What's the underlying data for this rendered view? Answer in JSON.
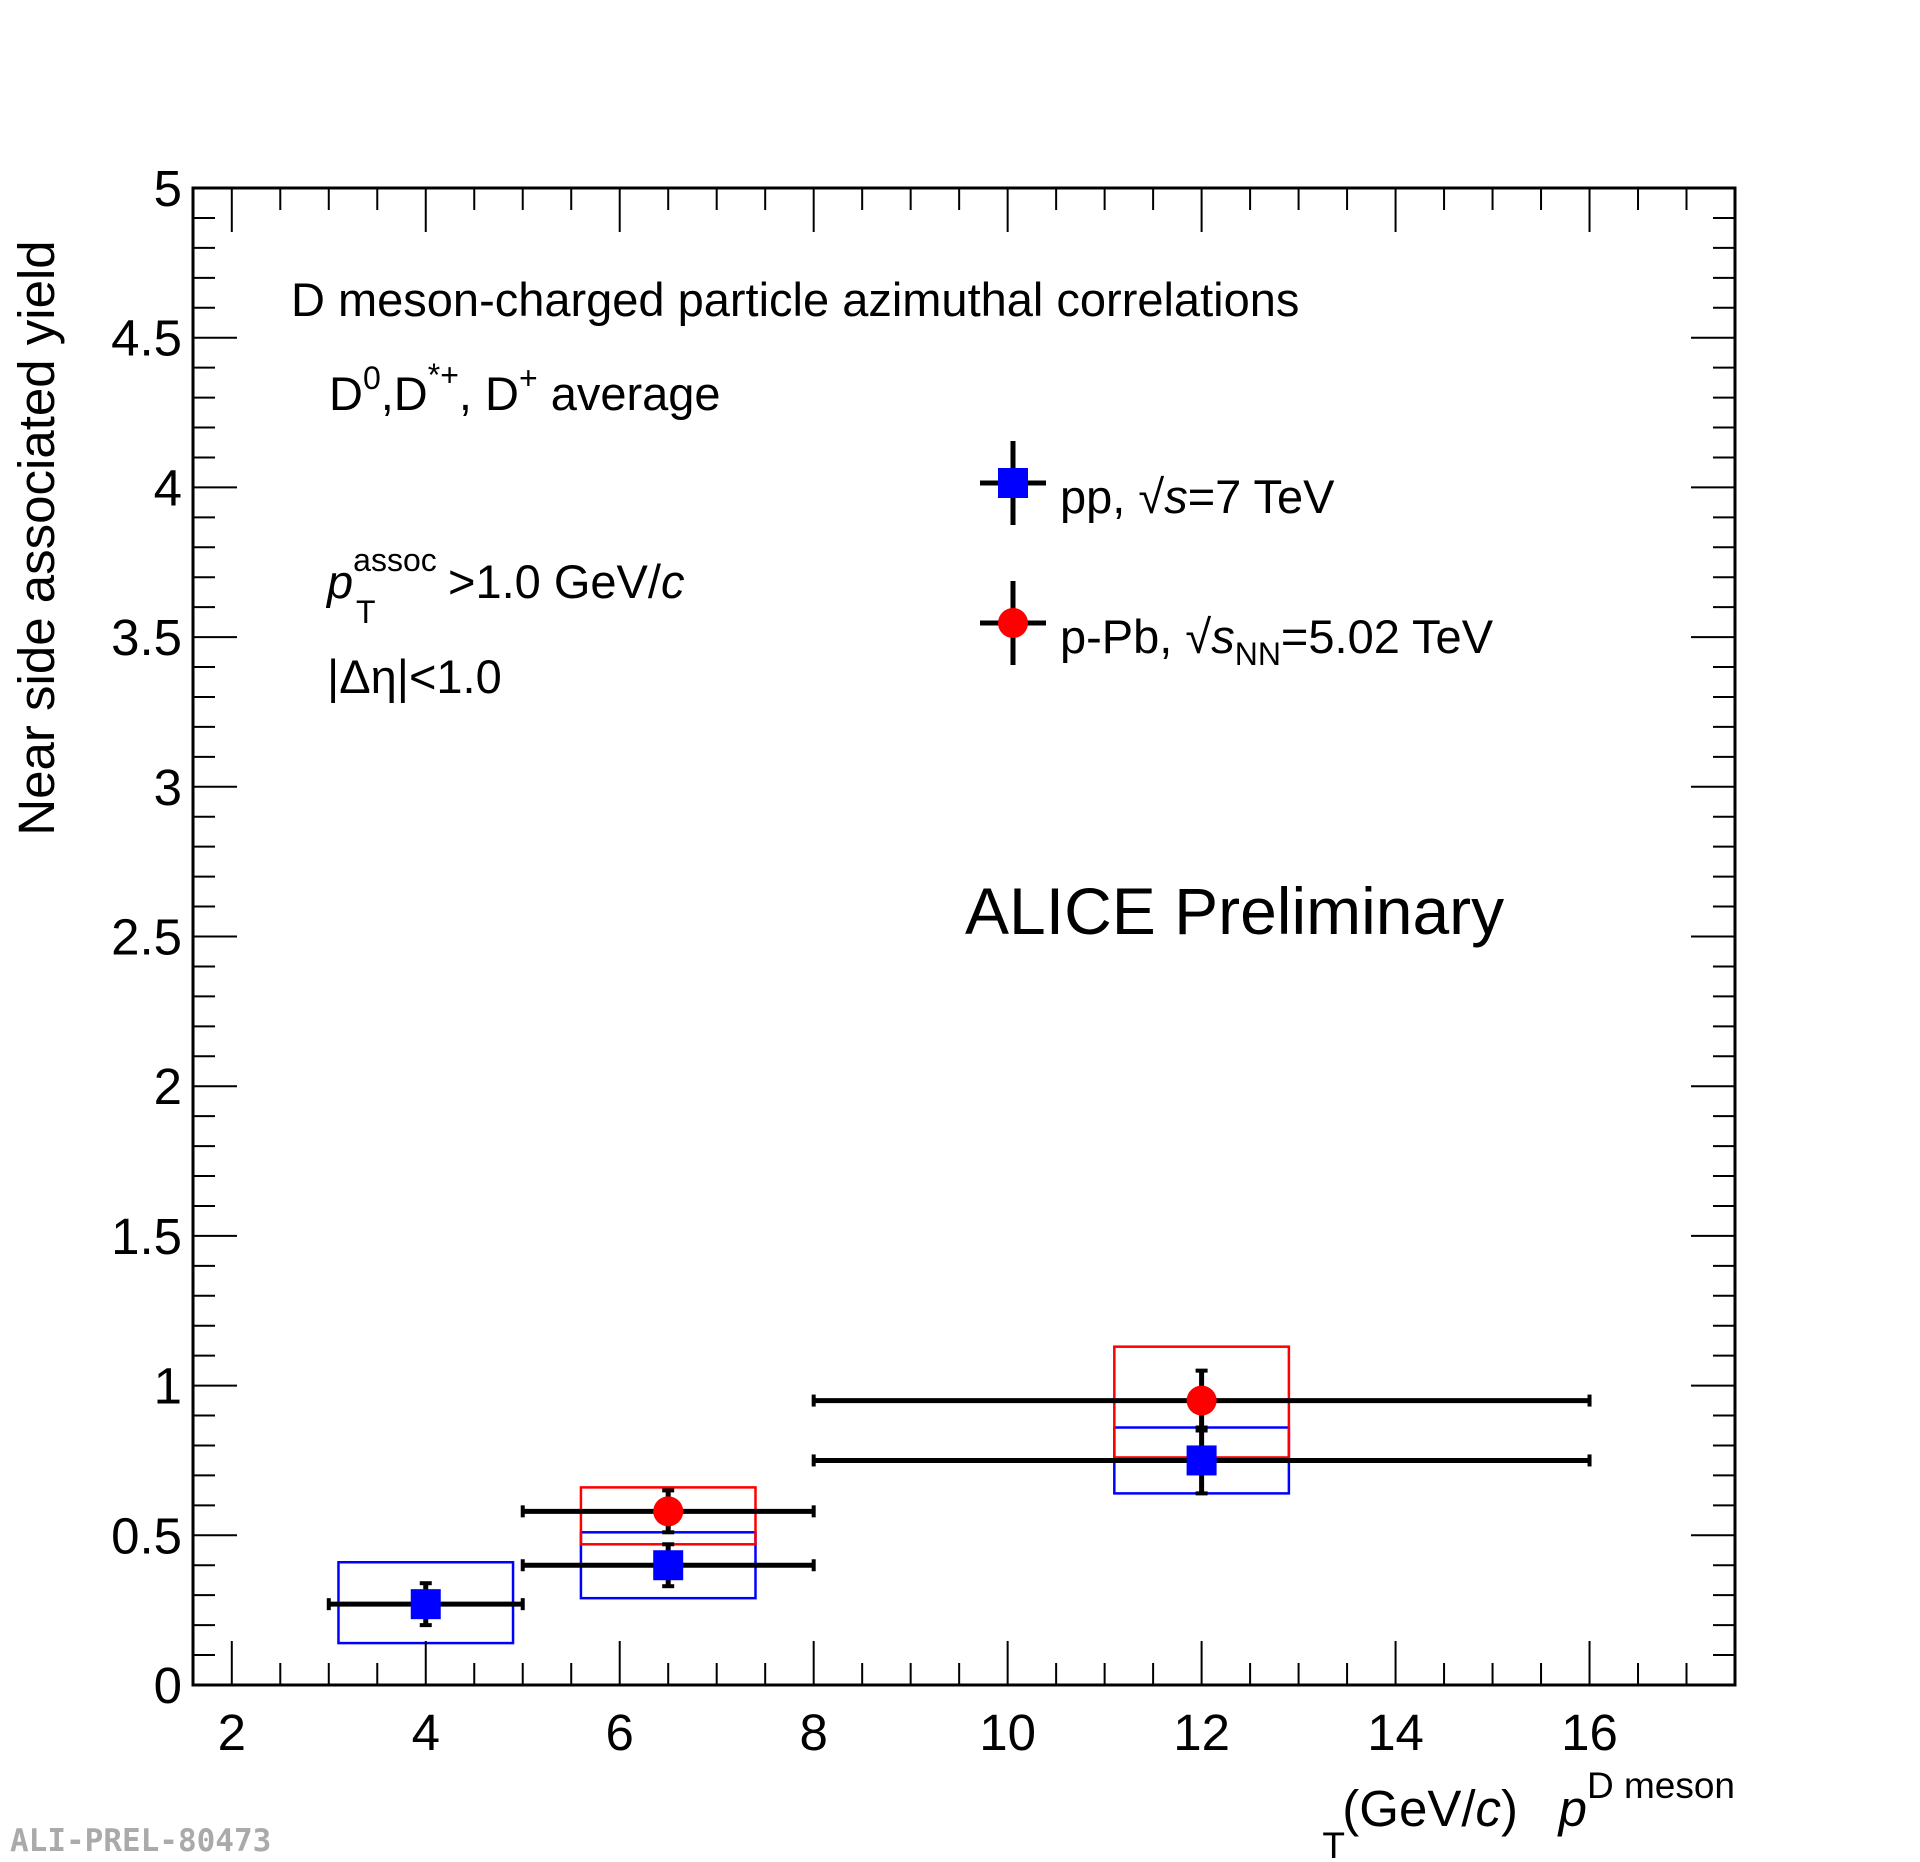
{
  "chart_data": {
    "type": "scatter",
    "title": "D meson-charged particle azimuthal correlations",
    "subtitle": {
      "species": {
        "base": "D",
        "s1": "0",
        "mid1": ",D",
        "s2": "*+",
        "mid2": ", D",
        "s3": "+",
        "tail": " average"
      },
      "cut1": {
        "p": "p",
        "sup": "assoc",
        "sub": "T",
        "mid": ">1.0 GeV/",
        "c": "c"
      },
      "cut2": "|Δη|<1.0"
    },
    "watermark": "ALICE Preliminary",
    "preliminary_id": "ALI-PREL-80473",
    "xlabel": {
      "p": "p",
      "sup": "D meson",
      "sub": "T",
      "unit_open": " (GeV/",
      "c": "c",
      "unit_close": ")"
    },
    "ylabel": "Near side associated yield",
    "xlim": [
      1.6,
      17.5
    ],
    "ylim": [
      0,
      5
    ],
    "x_ticks": [
      2,
      4,
      6,
      8,
      10,
      12,
      14,
      16
    ],
    "x_tick_labels": [
      "2",
      "4",
      "6",
      "8",
      "10",
      "12",
      "14",
      "16"
    ],
    "y_ticks": [
      0,
      0.5,
      1,
      1.5,
      2,
      2.5,
      3,
      3.5,
      4,
      4.5,
      5
    ],
    "y_tick_labels": [
      "0",
      "0.5",
      "1",
      "1.5",
      "2",
      "2.5",
      "3",
      "3.5",
      "4",
      "4.5",
      "5"
    ],
    "series": [
      {
        "name": "pp",
        "legend": {
          "pre": "pp, ",
          "var": "s",
          "sub": "",
          "post": "=7 TeV"
        },
        "marker": "square",
        "color": "#0000ff",
        "points": [
          {
            "x": 4,
            "y": 0.27,
            "x_lo": 3,
            "x_hi": 5,
            "stat": 0.07,
            "sys_lo": 0.14,
            "sys_hi": 0.41,
            "sys_x_lo": 3.1,
            "sys_x_hi": 4.9
          },
          {
            "x": 6.5,
            "y": 0.4,
            "x_lo": 5,
            "x_hi": 8,
            "stat": 0.07,
            "sys_lo": 0.29,
            "sys_hi": 0.51,
            "sys_x_lo": 5.6,
            "sys_x_hi": 7.4
          },
          {
            "x": 12,
            "y": 0.75,
            "x_lo": 8,
            "x_hi": 16,
            "stat": 0.11,
            "sys_lo": 0.64,
            "sys_hi": 0.86,
            "sys_x_lo": 11.1,
            "sys_x_hi": 12.9
          }
        ]
      },
      {
        "name": "p-Pb",
        "legend": {
          "pre": "p-Pb, ",
          "var": "s",
          "sub": "NN",
          "post": "=5.02 TeV"
        },
        "marker": "circle",
        "color": "#ff0000",
        "points": [
          {
            "x": 6.5,
            "y": 0.58,
            "x_lo": 5,
            "x_hi": 8,
            "stat": 0.07,
            "sys_lo": 0.47,
            "sys_hi": 0.66,
            "sys_x_lo": 5.6,
            "sys_x_hi": 7.4
          },
          {
            "x": 12,
            "y": 0.95,
            "x_lo": 8,
            "x_hi": 16,
            "stat": 0.1,
            "sys_lo": 0.76,
            "sys_hi": 1.13,
            "sys_x_lo": 11.1,
            "sys_x_hi": 12.9
          }
        ]
      }
    ],
    "legend_position": "top-right"
  }
}
